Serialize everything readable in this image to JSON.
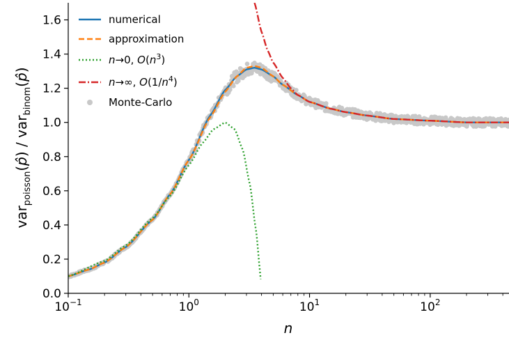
{
  "chart_data": {
    "type": "line",
    "x_scale": "log",
    "xlim": [
      0.1,
      450
    ],
    "ylim": [
      0.0,
      1.7
    ],
    "xlabel": "n",
    "ylabel": "var_poisson(p̂) / var_binom(p̂)",
    "x_ticks": [
      {
        "value": 0.1,
        "base": "10",
        "exp": "−1"
      },
      {
        "value": 1,
        "base": "10",
        "exp": "0"
      },
      {
        "value": 10,
        "base": "10",
        "exp": "1"
      },
      {
        "value": 100,
        "base": "10",
        "exp": "2"
      }
    ],
    "y_ticks": [
      "0.0",
      "0.2",
      "0.4",
      "0.6",
      "0.8",
      "1.0",
      "1.2",
      "1.4",
      "1.6"
    ],
    "legend_position": "top-left",
    "grid": false,
    "series": [
      {
        "name": "numerical",
        "color": "#1f77b4",
        "style": "solid",
        "x": [
          0.1,
          0.15,
          0.2,
          0.3,
          0.5,
          0.7,
          1.0,
          1.5,
          2.0,
          2.5,
          3.0,
          3.5,
          4.0,
          5.0,
          6.0,
          8.0,
          10,
          15,
          20,
          30,
          50,
          100,
          200,
          450
        ],
        "y": [
          0.1,
          0.14,
          0.18,
          0.27,
          0.43,
          0.58,
          0.78,
          1.04,
          1.19,
          1.27,
          1.31,
          1.32,
          1.31,
          1.27,
          1.22,
          1.16,
          1.12,
          1.08,
          1.06,
          1.04,
          1.02,
          1.01,
          1.0,
          1.0
        ]
      },
      {
        "name": "approximation",
        "color": "#ff7f0e",
        "style": "dashed",
        "x": [
          0.1,
          0.15,
          0.2,
          0.3,
          0.5,
          0.7,
          1.0,
          1.5,
          2.0,
          2.5,
          3.0,
          3.5,
          4.0,
          5.0,
          6.0,
          8.0,
          10,
          15,
          20,
          30,
          50,
          100,
          200,
          450
        ],
        "y": [
          0.1,
          0.14,
          0.18,
          0.27,
          0.43,
          0.58,
          0.78,
          1.03,
          1.18,
          1.27,
          1.32,
          1.33,
          1.32,
          1.27,
          1.22,
          1.16,
          1.12,
          1.08,
          1.06,
          1.04,
          1.02,
          1.01,
          1.0,
          1.0
        ]
      },
      {
        "name": "n→0, O(n³)",
        "color": "#2ca02c",
        "style": "dotted",
        "x": [
          0.1,
          0.2,
          0.3,
          0.5,
          0.7,
          1.0,
          1.3,
          1.6,
          2.0,
          2.4,
          2.8,
          3.2,
          3.6,
          3.9,
          4.0
        ],
        "y": [
          0.1,
          0.19,
          0.28,
          0.44,
          0.57,
          0.75,
          0.88,
          0.96,
          1.0,
          0.96,
          0.84,
          0.64,
          0.37,
          0.12,
          0.0
        ]
      },
      {
        "name": "n→∞, O(1/n⁴)",
        "color": "#d62728",
        "style": "dashdot",
        "x": [
          3.5,
          4.0,
          4.5,
          5.0,
          6.0,
          7.0,
          8.0,
          10,
          15,
          20,
          30,
          50,
          100,
          200,
          450
        ],
        "y": [
          1.7,
          1.53,
          1.42,
          1.35,
          1.26,
          1.2,
          1.16,
          1.12,
          1.08,
          1.06,
          1.04,
          1.02,
          1.01,
          1.0,
          1.0
        ]
      }
    ],
    "scatter": {
      "name": "Monte-Carlo",
      "color": "#c8c8c8"
    }
  }
}
